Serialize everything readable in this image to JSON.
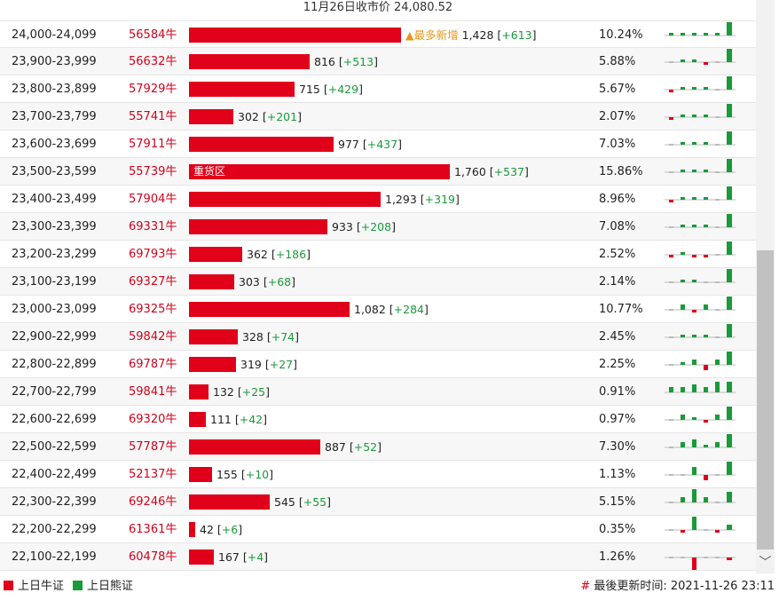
{
  "title": "11月26日收市价 24,080.52",
  "colors": {
    "bull": "#e1001a",
    "bear": "#1a9a3a"
  },
  "rows": [
    {
      "range": "24,000-24,099",
      "code": "56584牛",
      "value": "1,428",
      "change": "+613",
      "pct": "10.24%",
      "tag": "▲最多新增",
      "bar": 1428,
      "spark": [
        -1,
        -1,
        -1,
        -1,
        -1,
        -5
      ]
    },
    {
      "range": "23,900-23,999",
      "code": "56632牛",
      "value": "816",
      "change": "+513",
      "pct": "5.88%",
      "bar": 816,
      "spark": [
        0,
        -1,
        -1,
        1,
        0,
        -5
      ]
    },
    {
      "range": "23,800-23,899",
      "code": "57929牛",
      "value": "715",
      "change": "+429",
      "pct": "5.67%",
      "bar": 715,
      "spark": [
        1,
        -1,
        -1,
        -1,
        0,
        -5
      ]
    },
    {
      "range": "23,700-23,799",
      "code": "55741牛",
      "value": "302",
      "change": "+201",
      "pct": "2.07%",
      "bar": 302,
      "spark": [
        1,
        -1,
        -1,
        -1,
        0,
        -5
      ]
    },
    {
      "range": "23,600-23,699",
      "code": "57911牛",
      "value": "977",
      "change": "+437",
      "pct": "7.03%",
      "bar": 977,
      "spark": [
        0,
        -1,
        -1,
        -1,
        0,
        -5
      ]
    },
    {
      "range": "23,500-23,599",
      "code": "55739牛",
      "value": "1,760",
      "change": "+537",
      "pct": "15.86%",
      "label": "重货区",
      "bar": 1760,
      "spark": [
        0,
        -1,
        -1,
        -1,
        0,
        -6
      ]
    },
    {
      "range": "23,400-23,499",
      "code": "57904牛",
      "value": "1,293",
      "change": "+319",
      "pct": "8.96%",
      "bar": 1293,
      "spark": [
        1,
        -1,
        -1,
        -1,
        0,
        -6
      ]
    },
    {
      "range": "23,300-23,399",
      "code": "69331牛",
      "value": "933",
      "change": "+208",
      "pct": "7.08%",
      "bar": 933,
      "spark": [
        0,
        -1,
        -1,
        -1,
        0,
        -6
      ]
    },
    {
      "range": "23,200-23,299",
      "code": "69793牛",
      "value": "362",
      "change": "+186",
      "pct": "2.52%",
      "bar": 362,
      "spark": [
        1,
        -1,
        1,
        1,
        0,
        -5
      ]
    },
    {
      "range": "23,100-23,199",
      "code": "69327牛",
      "value": "303",
      "change": "+68",
      "pct": "2.14%",
      "bar": 303,
      "spark": [
        0,
        -1,
        -1,
        0,
        0,
        -5
      ]
    },
    {
      "range": "23,000-23,099",
      "code": "69325牛",
      "value": "1,082",
      "change": "+284",
      "pct": "10.77%",
      "bar": 1082,
      "spark": [
        0,
        -2,
        1,
        -2,
        0,
        -5
      ]
    },
    {
      "range": "22,900-22,999",
      "code": "59842牛",
      "value": "328",
      "change": "+74",
      "pct": "2.45%",
      "bar": 328,
      "spark": [
        0,
        -1,
        -1,
        -1,
        0,
        -5
      ]
    },
    {
      "range": "22,800-22,899",
      "code": "69787牛",
      "value": "319",
      "change": "+27",
      "pct": "2.25%",
      "bar": 319,
      "spark": [
        0,
        -1,
        -2,
        2,
        -2,
        -5
      ]
    },
    {
      "range": "22,700-22,799",
      "code": "59841牛",
      "value": "132",
      "change": "+25",
      "pct": "0.91%",
      "bar": 132,
      "spark": [
        -2,
        -2,
        -3,
        -2,
        -4,
        -4
      ]
    },
    {
      "range": "22,600-22,699",
      "code": "69320牛",
      "value": "111",
      "change": "+42",
      "pct": "0.97%",
      "bar": 111,
      "spark": [
        0,
        -2,
        -1,
        1,
        -2,
        -5
      ]
    },
    {
      "range": "22,500-22,599",
      "code": "57787牛",
      "value": "887",
      "change": "+52",
      "pct": "7.30%",
      "bar": 887,
      "spark": [
        0,
        -2,
        -3,
        -1,
        -2,
        -5
      ]
    },
    {
      "range": "22,400-22,499",
      "code": "52137牛",
      "value": "155",
      "change": "+10",
      "pct": "1.13%",
      "bar": 155,
      "spark": [
        0,
        0,
        -3,
        2,
        0,
        -5
      ]
    },
    {
      "range": "22,300-22,399",
      "code": "69246牛",
      "value": "545",
      "change": "+55",
      "pct": "5.15%",
      "bar": 545,
      "spark": [
        0,
        -2,
        -5,
        -2,
        0,
        -4
      ]
    },
    {
      "range": "22,200-22,299",
      "code": "61361牛",
      "value": "42",
      "change": "+6",
      "pct": "0.35%",
      "bar": 42,
      "spark": [
        0,
        1,
        -5,
        0,
        1,
        -2
      ]
    },
    {
      "range": "22,100-22,199",
      "code": "60478牛",
      "value": "167",
      "change": "+4",
      "pct": "1.26%",
      "bar": 167,
      "spark": [
        0,
        0,
        5,
        0,
        0,
        1
      ]
    }
  ],
  "legend": {
    "bull": "上日牛证",
    "bear": "上日熊证"
  },
  "footer": {
    "hash": "#",
    "updated": "最後更新时间: 2021-11-26 23:11"
  }
}
